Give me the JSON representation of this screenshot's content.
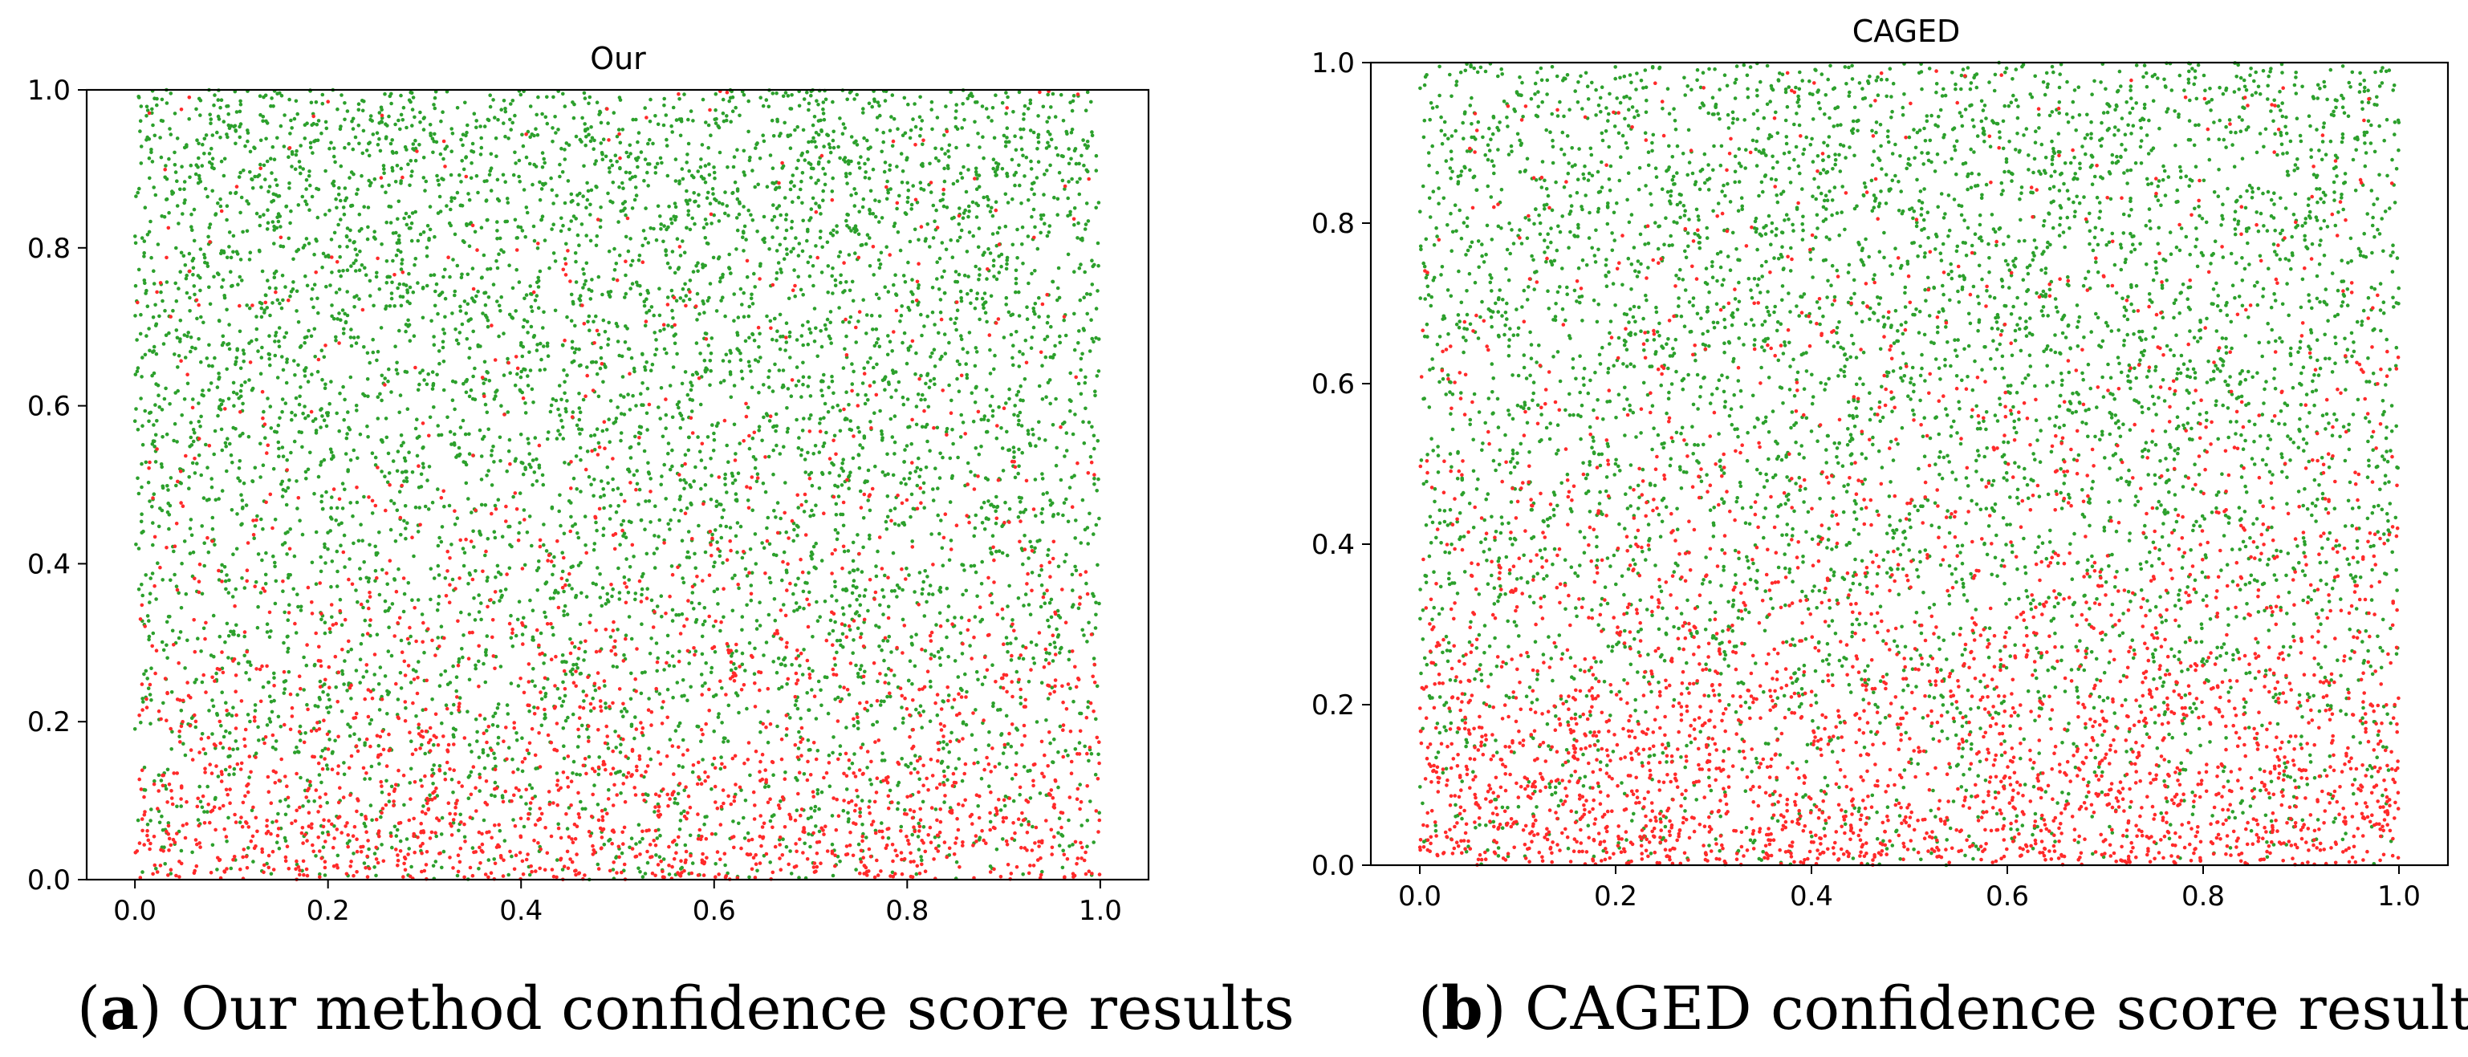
{
  "colors": {
    "positive": "#2ca02c",
    "negative": "#ff2a2a",
    "axis": "#000000"
  },
  "chart_data": [
    {
      "type": "scatter",
      "title": "Our",
      "xlabel": "",
      "ylabel": "",
      "xlim": [
        -0.05,
        1.05
      ],
      "ylim": [
        0.0,
        1.0
      ],
      "x_ticks": [
        "0.0",
        "0.2",
        "0.4",
        "0.6",
        "0.8",
        "1.0"
      ],
      "y_ticks": [
        "0.0",
        "0.2",
        "0.4",
        "0.6",
        "0.8",
        "1.0"
      ],
      "grid": false,
      "series": [
        {
          "name": "green",
          "color": "#2ca02c",
          "description": "dense uniform cloud, increasing density toward y = 1",
          "x_range": [
            0.0,
            1.0
          ],
          "y_range": [
            0.0,
            1.0
          ],
          "approx_points": 6000
        },
        {
          "name": "red",
          "color": "#ff2a2a",
          "description": "concentrated near y = 0, sparse above 0.5",
          "x_range": [
            0.0,
            1.0
          ],
          "y_range": [
            0.0,
            1.0
          ],
          "approx_points": 2200
        }
      ],
      "caption": {
        "label": "a",
        "text": "Our method confidence score results"
      }
    },
    {
      "type": "scatter",
      "title": "CAGED",
      "xlabel": "",
      "ylabel": "",
      "xlim": [
        -0.05,
        1.05
      ],
      "ylim": [
        0.0,
        1.0
      ],
      "x_ticks": [
        "0.0",
        "0.2",
        "0.4",
        "0.6",
        "0.8",
        "1.0"
      ],
      "y_ticks": [
        "0.0",
        "0.2",
        "0.4",
        "0.6",
        "0.8",
        "1.0"
      ],
      "grid": false,
      "series": [
        {
          "name": "green",
          "color": "#2ca02c",
          "description": "dense uniform cloud, increasing density toward y = 1",
          "x_range": [
            0.0,
            1.0
          ],
          "y_range": [
            0.0,
            1.0
          ],
          "approx_points": 5000
        },
        {
          "name": "red",
          "color": "#ff2a2a",
          "description": "heavily concentrated near y = 0, extends up to ~0.7",
          "x_range": [
            0.0,
            1.0
          ],
          "y_range": [
            0.0,
            1.0
          ],
          "approx_points": 3200
        }
      ],
      "caption": {
        "label": "b",
        "text": "CAGED confidence score results"
      }
    }
  ]
}
